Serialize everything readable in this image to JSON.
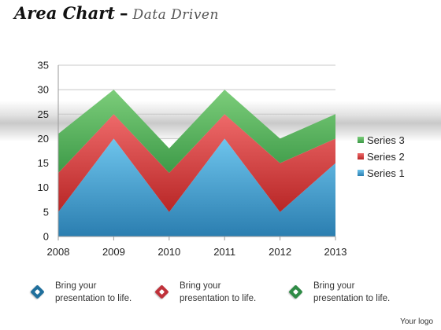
{
  "title": {
    "main": "Area Chart",
    "dash": "–",
    "sub": "Data Driven"
  },
  "chart_data": {
    "type": "area",
    "stacked": true,
    "categories": [
      "2008",
      "2009",
      "2010",
      "2011",
      "2012",
      "2013"
    ],
    "series": [
      {
        "name": "Series 1",
        "values": [
          5,
          20,
          5,
          20,
          5,
          15
        ],
        "color": "#3f94c6"
      },
      {
        "name": "Series 2",
        "values": [
          8,
          5,
          8,
          5,
          10,
          5
        ],
        "color": "#d23f3f"
      },
      {
        "name": "Series 3",
        "values": [
          8,
          5,
          5,
          5,
          5,
          5
        ],
        "color": "#4fb055"
      }
    ],
    "ylim": [
      0,
      35
    ],
    "yticks": [
      "0",
      "5",
      "10",
      "15",
      "20",
      "25",
      "30",
      "35"
    ],
    "grid": true,
    "legend": "right"
  },
  "bullets": [
    {
      "text": "Bring your\npresentation to life.",
      "color": "#1f6f9c"
    },
    {
      "text": "Bring your\npresentation to life.",
      "color": "#c0313a"
    },
    {
      "text": "Bring your\npresentation to life.",
      "color": "#2e8b45"
    }
  ],
  "logo": "Your logo"
}
